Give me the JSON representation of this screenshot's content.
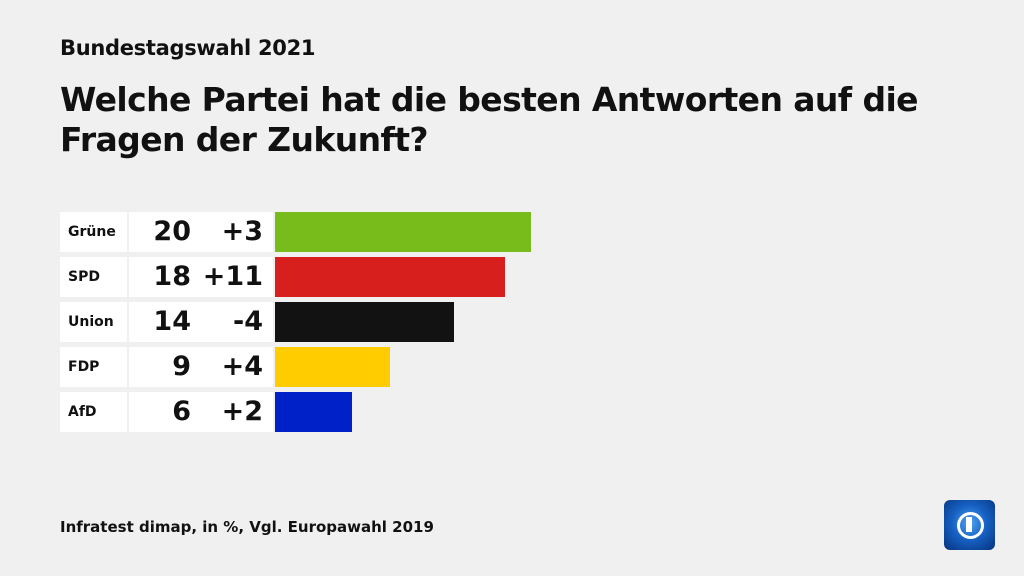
{
  "supertitle": "Bundestagswahl 2021",
  "title": "Welche Partei hat die besten Antworten auf die Fragen der Zukunft?",
  "source": "Infratest dimap, in %, Vgl. Europawahl 2019",
  "logo": "ARD Das Erste logo",
  "chart_data": {
    "type": "bar",
    "orientation": "horizontal",
    "title": "Welche Partei hat die besten Antworten auf die Fragen der Zukunft?",
    "categories": [
      "Grüne",
      "SPD",
      "Union",
      "FDP",
      "AfD"
    ],
    "values": [
      20,
      18,
      14,
      9,
      6
    ],
    "values_label": [
      "20",
      "18",
      "14",
      "9",
      "6"
    ],
    "changes": [
      "+3",
      "+11",
      "-4",
      "+4",
      "+2"
    ],
    "colors": [
      "#78bc1b",
      "#d71f1d",
      "#121212",
      "#ffcc00",
      "#0021c8"
    ],
    "unit": "%",
    "grid": false
  }
}
